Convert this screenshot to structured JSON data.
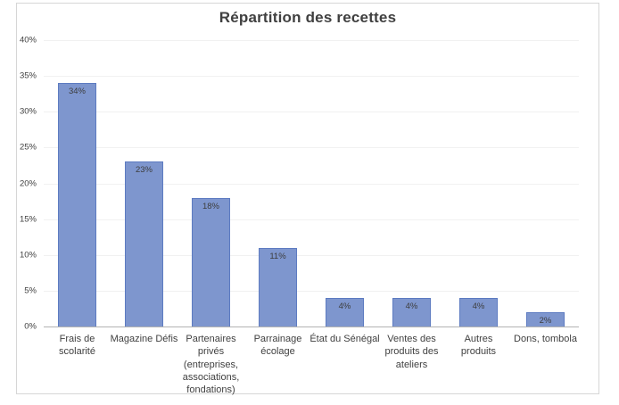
{
  "chart_data": {
    "type": "bar",
    "title": "Répartition des recettes",
    "categories": [
      "Frais de scolarité",
      "Magazine Défis",
      "Partenaires privés (entreprises, associations, fondations)",
      "Parrainage écolage",
      "État du Sénégal",
      "Ventes des produits des ateliers",
      "Autres produits",
      "Dons, tombola"
    ],
    "category_display": [
      "Frais de\nscolarité",
      "Magazine Défis",
      "Partenaires\nprivés\n(entreprises,\nassociations,\nfondations)",
      "Parrainage\nécolage",
      "État du Sénégal",
      "Ventes des\nproduits des\nateliers",
      "Autres\nproduits",
      "Dons, tombola"
    ],
    "values": [
      34,
      23,
      18,
      11,
      4,
      4,
      4,
      2
    ],
    "bar_labels": [
      "34%",
      "23%",
      "18%",
      "11%",
      "4%",
      "4%",
      "4%",
      "2%"
    ],
    "xlabel": "",
    "ylabel": "",
    "ylim": [
      0,
      40
    ],
    "ytick_step": 5,
    "ytick_labels": [
      "0%",
      "5%",
      "10%",
      "15%",
      "20%",
      "25%",
      "30%",
      "35%",
      "40%"
    ],
    "grid": true,
    "legend": "none",
    "colors": {
      "bar_fill": "#7e96ce",
      "bar_border": "#5d7bc1",
      "gridline": "#f1f1f1",
      "axis_line": "#b3b3b3",
      "text": "#404040",
      "frame_border": "#d6d6d6",
      "background": "#ffffff"
    }
  }
}
